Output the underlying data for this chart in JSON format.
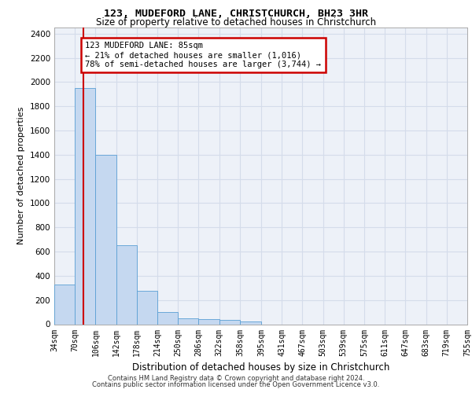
{
  "title": "123, MUDEFORD LANE, CHRISTCHURCH, BH23 3HR",
  "subtitle": "Size of property relative to detached houses in Christchurch",
  "xlabel": "Distribution of detached houses by size in Christchurch",
  "ylabel": "Number of detached properties",
  "bar_edges": [
    34,
    70,
    106,
    142,
    178,
    214,
    250,
    286,
    322,
    358,
    395,
    431,
    467,
    503,
    539,
    575,
    611,
    647,
    683,
    719,
    755
  ],
  "bar_heights": [
    325,
    1950,
    1400,
    650,
    275,
    100,
    50,
    40,
    35,
    20,
    0,
    0,
    0,
    0,
    0,
    0,
    0,
    0,
    0,
    0
  ],
  "bar_color": "#c5d8f0",
  "bar_edge_color": "#5a9fd4",
  "vline_x": 85,
  "vline_color": "#cc0000",
  "annotation_text": "123 MUDEFORD LANE: 85sqm\n← 21% of detached houses are smaller (1,016)\n78% of semi-detached houses are larger (3,744) →",
  "annotation_box_color": "#cc0000",
  "ylim": [
    0,
    2450
  ],
  "yticks": [
    0,
    200,
    400,
    600,
    800,
    1000,
    1200,
    1400,
    1600,
    1800,
    2000,
    2200,
    2400
  ],
  "grid_color": "#d4dcea",
  "bg_color": "#edf1f8",
  "footer_line1": "Contains HM Land Registry data © Crown copyright and database right 2024.",
  "footer_line2": "Contains public sector information licensed under the Open Government Licence v3.0."
}
